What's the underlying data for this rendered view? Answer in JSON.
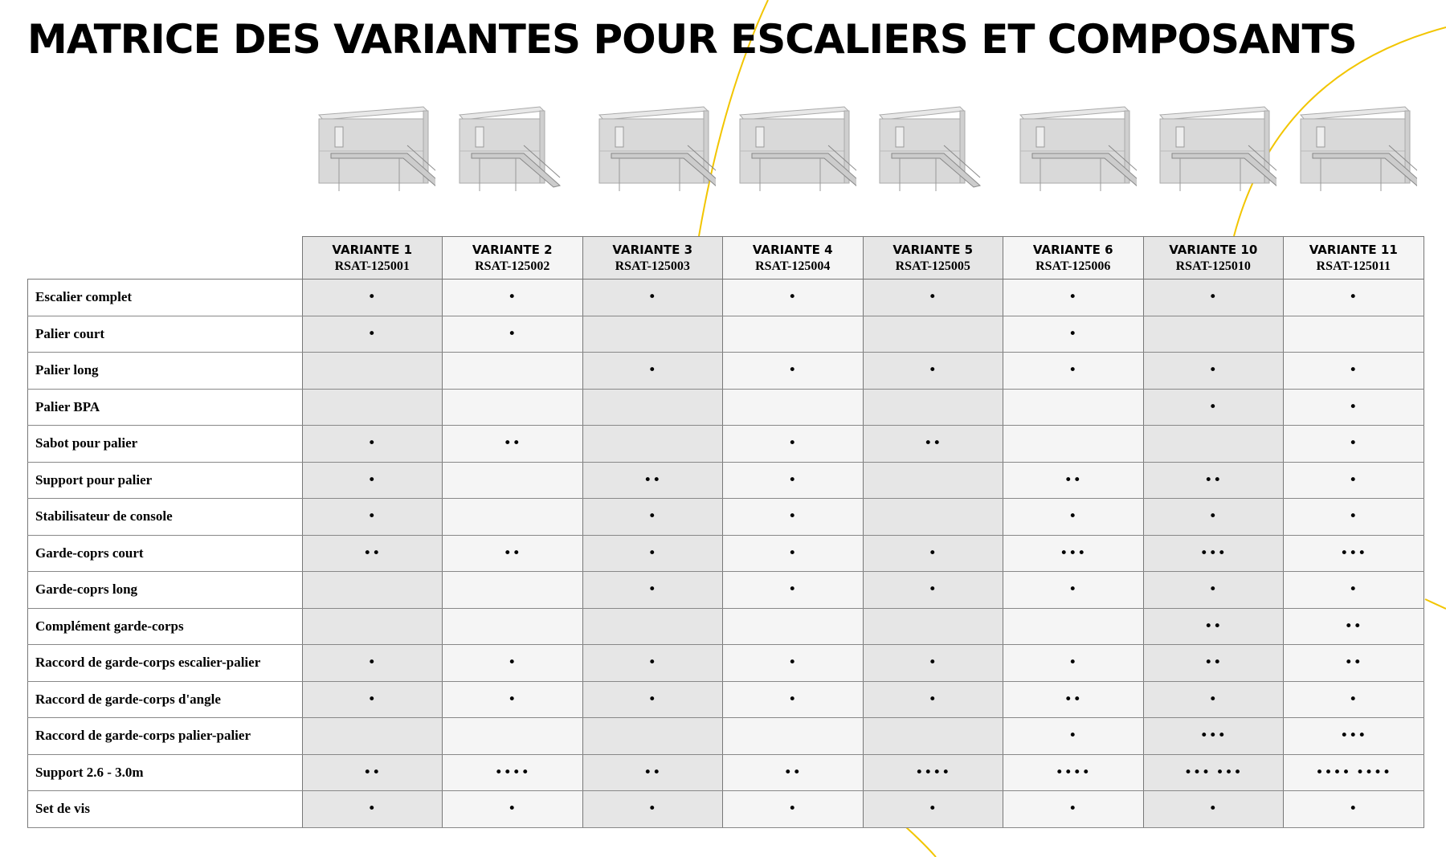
{
  "title": "MATRICE DES VARIANTES POUR ESCALIERS ET COMPOSANTS",
  "accent_color": "#f2c500",
  "columns": [
    {
      "name": "VARIANTE 1",
      "code": "RSAT-125001"
    },
    {
      "name": "VARIANTE 2",
      "code": "RSAT-125002"
    },
    {
      "name": "VARIANTE 3",
      "code": "RSAT-125003"
    },
    {
      "name": "VARIANTE 4",
      "code": "RSAT-125004"
    },
    {
      "name": "VARIANTE 5",
      "code": "RSAT-125005"
    },
    {
      "name": "VARIANTE 6",
      "code": "RSAT-125006"
    },
    {
      "name": "VARIANTE 10",
      "code": "RSAT-125010"
    },
    {
      "name": "VARIANTE 11",
      "code": "RSAT-125011"
    }
  ],
  "rows": [
    {
      "label": "Escalier complet",
      "cells": [
        "•",
        "•",
        "•",
        "•",
        "•",
        "•",
        "•",
        "•"
      ]
    },
    {
      "label": "Palier court",
      "cells": [
        "•",
        "•",
        "",
        "",
        "",
        "•",
        "",
        ""
      ]
    },
    {
      "label": "Palier long",
      "cells": [
        "",
        "",
        "•",
        "•",
        "•",
        "•",
        "•",
        "•"
      ]
    },
    {
      "label": "Palier BPA",
      "cells": [
        "",
        "",
        "",
        "",
        "",
        "",
        "•",
        "•"
      ]
    },
    {
      "label": "Sabot pour palier",
      "cells": [
        "•",
        "••",
        "",
        "•",
        "••",
        "",
        "",
        "•"
      ]
    },
    {
      "label": "Support pour palier",
      "cells": [
        "•",
        "",
        "••",
        "•",
        "",
        "••",
        "••",
        "•"
      ]
    },
    {
      "label": "Stabilisateur de console",
      "cells": [
        "•",
        "",
        "•",
        "•",
        "",
        "•",
        "•",
        "•"
      ]
    },
    {
      "label": "Garde-coprs court",
      "cells": [
        "••",
        "••",
        "•",
        "•",
        "•",
        "•••",
        "•••",
        "•••"
      ]
    },
    {
      "label": "Garde-coprs long",
      "cells": [
        "",
        "",
        "•",
        "•",
        "•",
        "•",
        "•",
        "•"
      ]
    },
    {
      "label": "Complément garde-corps",
      "cells": [
        "",
        "",
        "",
        "",
        "",
        "",
        "••",
        "••"
      ]
    },
    {
      "label": "Raccord de garde-corps escalier-palier",
      "cells": [
        "•",
        "•",
        "•",
        "•",
        "•",
        "•",
        "••",
        "••"
      ]
    },
    {
      "label": "Raccord de garde-corps d'angle",
      "cells": [
        "•",
        "•",
        "•",
        "•",
        "•",
        "••",
        "•",
        "•"
      ]
    },
    {
      "label": "Raccord de garde-corps palier-palier",
      "cells": [
        "",
        "",
        "",
        "",
        "",
        "•",
        "•••",
        "•••"
      ]
    },
    {
      "label": "Support 2.6 - 3.0m",
      "cells": [
        "••",
        "••••",
        "••",
        "••",
        "••••",
        "••••",
        "•••   •••",
        "••••   ••••"
      ]
    },
    {
      "label": "Set de vis",
      "cells": [
        "•",
        "•",
        "•",
        "•",
        "•",
        "•",
        "•",
        "•"
      ]
    }
  ]
}
